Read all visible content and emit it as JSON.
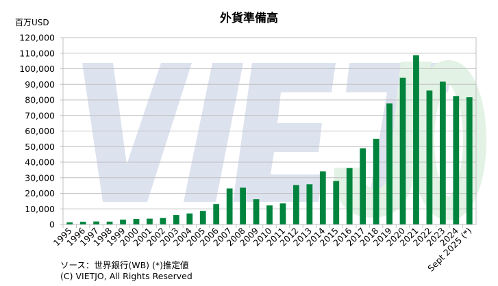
{
  "chart_data": {
    "type": "bar",
    "title": "外貨準備高",
    "ylabel": "百万USD",
    "xlabel": "",
    "ylim": [
      0,
      120000
    ],
    "ytick_step": 10000,
    "yticks": [
      "0",
      "10,000",
      "20,000",
      "30,000",
      "40,000",
      "50,000",
      "60,000",
      "70,000",
      "80,000",
      "90,000",
      "100,000",
      "110,000",
      "120,000"
    ],
    "grid": true,
    "categories": [
      "1995",
      "1996",
      "1997",
      "1998",
      "1999",
      "2000",
      "2001",
      "2002",
      "2003",
      "2004",
      "2005",
      "2006",
      "2007",
      "2008",
      "2009",
      "2010",
      "2011",
      "2012",
      "2013",
      "2014",
      "2015",
      "2016",
      "2017",
      "2018",
      "2019",
      "2020",
      "2021",
      "2022",
      "2023",
      "2024",
      "Sept 2025 (*)"
    ],
    "values": [
      1300,
      1700,
      1900,
      1800,
      3100,
      3500,
      3700,
      4100,
      6100,
      7000,
      8700,
      13100,
      23100,
      23600,
      16200,
      12200,
      13500,
      25300,
      25800,
      34100,
      27900,
      36200,
      48900,
      55000,
      77700,
      94200,
      108700,
      86000,
      91700,
      82500,
      81700
    ],
    "bar_color": "#00843d",
    "watermark": "VIET JO"
  },
  "notes": {
    "source": "ソース：世界銀行(WB)  (*)推定値",
    "copyright": "(C) VIETJO, All Rights Reserved"
  }
}
